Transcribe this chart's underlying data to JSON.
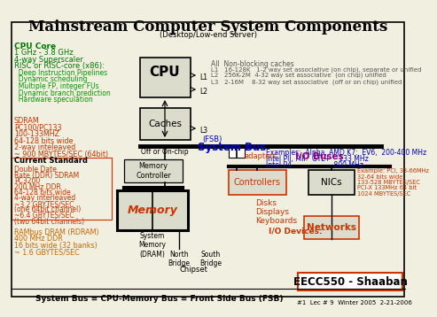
{
  "title": "Mainstream Computer System Components",
  "subtitle": "(Desktop/Low-end Server)",
  "bg_color": "#f0efe0",
  "cpu_core_lines": [
    [
      "CPU Core",
      6.5,
      true,
      "#007700"
    ],
    [
      "1 GHz - 3.8 GHz",
      6,
      false,
      "#007700"
    ],
    [
      "4-way Superscaler",
      6,
      false,
      "#007700"
    ],
    [
      "RISC or RISC-core (x86):",
      6,
      false,
      "#007700"
    ],
    [
      "  Deep Instruction Pipelines",
      5.5,
      false,
      "#009900"
    ],
    [
      "  Dynamic scheduling",
      5.5,
      false,
      "#009900"
    ],
    [
      "  Multiple FP, integer FUs",
      5.5,
      false,
      "#009900"
    ],
    [
      "  Dynamic branch prediction",
      5.5,
      false,
      "#009900"
    ],
    [
      "  Hardware speculation",
      5.5,
      false,
      "#009900"
    ]
  ],
  "sdram_lines": [
    "SDRAM",
    "PC100/PC133",
    "100-133MHZ",
    "64-128 bits wide",
    "2-way inteleaved",
    "~ 900 MBYTES/SEC (64bit)"
  ],
  "ddr_lines": [
    "Double Date",
    "Rate (DDR) SDRAM",
    "PC3200",
    "200 MHz DDR",
    "64-128 bits wide",
    "4-way interleaved",
    "~3.2 GBYTES/SEC",
    "(one 64bit channel)",
    "~6.4 GBYTES/SEC",
    "(two 64bit channels)"
  ],
  "rdram_lines": [
    "RAMbus DRAM (RDRAM)",
    "400 MHz DDR",
    "16 bits wide (32 banks)",
    "~ 1.6 GBYTES/SEC"
  ],
  "cache_info_lines": [
    [
      "All  Non-blocking caches",
      5.5
    ],
    [
      "L1   16-128K   1-2 way set associative (on chip), separate or unified",
      5
    ],
    [
      "L2   256K-2M  4-32 way set associative  (on chip) unified",
      5
    ],
    [
      "L3   2-16M    8-32 way set associative  (off or on chip) unified",
      5
    ]
  ],
  "fsb_ex_lines": [
    [
      "Examples:  Alpha, AMD K7:  EV6,  200-400 MHz",
      5.5
    ],
    [
      "Intel PII, PIII:  GTL+    133 MHz",
      5.5
    ],
    [
      "Intel P4                    800 MHz",
      5.5
    ]
  ],
  "io_ex_lines": [
    "Example: PCI, 33-66MHz",
    "32-64 bits wide",
    "133-528 MBYTES/SEC",
    "PCI-X 133MHz 64 bit",
    "1024 MBYTES/SEC"
  ],
  "bottom_text": "System Bus = CPU-Memory Bus = Front Side Bus (FSB)",
  "footer_text": "#1  Lec # 9  Winter 2005  2-21-2006",
  "eecc_text": "EECC550 - Shaaban",
  "red": "#cc3300",
  "orange": "#cc6600",
  "blue": "#0000cc",
  "purple": "#880088",
  "green": "#007700",
  "lt_green": "#009900"
}
